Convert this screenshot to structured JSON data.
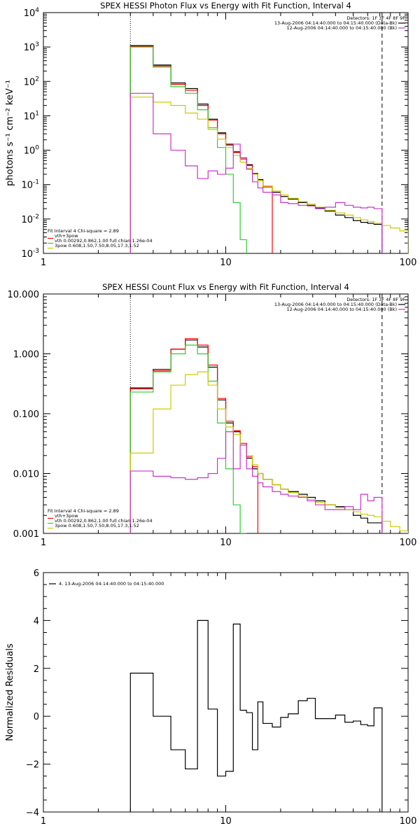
{
  "chart_data": [
    {
      "type": "line",
      "title": "SPEX HESSI Photon Flux vs Energy with Fit Function, Interval 4",
      "ylabel": "photons s⁻¹ cm⁻² keV⁻¹",
      "xlabel": "",
      "xscale": "log",
      "yscale": "log",
      "xlim": [
        1,
        100
      ],
      "ylim": [
        0.001,
        10000
      ],
      "x_ticks": [
        {
          "v": 1,
          "label": "1"
        },
        {
          "v": 10,
          "label": "10"
        },
        {
          "v": 100,
          "label": "100"
        }
      ],
      "y_ticks": [
        {
          "v": 0.001,
          "base": "10",
          "exp": "-3"
        },
        {
          "v": 0.01,
          "base": "10",
          "exp": "-2"
        },
        {
          "v": 0.1,
          "base": "10",
          "exp": "-1"
        },
        {
          "v": 1,
          "base": "10",
          "exp": "0"
        },
        {
          "v": 10,
          "base": "10",
          "exp": "1"
        },
        {
          "v": 100,
          "base": "10",
          "exp": "2"
        },
        {
          "v": 1000,
          "base": "10",
          "exp": "3"
        },
        {
          "v": 10000,
          "base": "10",
          "exp": "4"
        }
      ],
      "vlines": [
        {
          "x": 3,
          "style": "dotted"
        },
        {
          "x": 72,
          "style": "dashed"
        }
      ],
      "legend_right": [
        {
          "text": "Detectors: 1F 3F 4F 8F 9F",
          "color": null
        },
        {
          "text": "13-Aug-2006 04:14:40.000 to 04:15:40.000 (Data-Bk)",
          "color": "#000000"
        },
        {
          "text": "12-Aug-2006 04:14:40.000 to 04:15:40.000 (Bk)",
          "color": "#cc33cc"
        }
      ],
      "legend_left": [
        {
          "text": "Fit Interval 4   Chi-square = 2.89",
          "color": null
        },
        {
          "text": "vth+3pow",
          "color": "#ff0000"
        },
        {
          "text": "vth 0.00292,0.862,1.00  full chian 1.26e-04",
          "color": "#33cc33"
        },
        {
          "text": "3pow 0.608,1.50,7.50,8.05,17.3,1.52",
          "color": "#cccc00"
        }
      ],
      "edges": [
        3,
        4,
        5,
        6,
        7,
        8,
        9,
        10,
        11,
        12,
        13,
        14,
        15,
        16,
        18,
        20,
        22,
        25,
        28,
        31,
        35,
        40,
        45,
        50,
        55,
        60,
        65,
        72,
        80,
        90,
        100
      ],
      "series": [
        {
          "name": "13-Aug-2006 04:14:40.000 to 04:15:40.000 (Data-Bk)",
          "color": "#000000",
          "values": [
            1100,
            300,
            90,
            62,
            22,
            8,
            3.2,
            1.5,
            0.9,
            0.6,
            0.38,
            0.21,
            0.14,
            0.09,
            0.06,
            0.045,
            0.038,
            0.03,
            0.025,
            0.021,
            0.017,
            0.013,
            0.011,
            0.009,
            0.008,
            0.0075,
            0.007
          ]
        },
        {
          "name": "vth+3pow",
          "color": "#ff0000",
          "values": [
            1050,
            280,
            82,
            55,
            20,
            7.5,
            3.0,
            1.4,
            0.85,
            0.55,
            0.36,
            0.2,
            0.13,
            0.085
          ]
        },
        {
          "name": "vth",
          "color": "#33cc33",
          "values": [
            1000,
            260,
            70,
            45,
            15,
            4.5,
            1.2,
            0.2,
            0.03,
            0.0025
          ]
        },
        {
          "name": "3pow",
          "color": "#cccc00",
          "values": [
            35,
            25,
            20,
            12,
            8,
            4,
            2.1,
            1.2,
            0.7,
            0.45,
            0.3,
            0.2,
            0.13,
            0.09,
            0.065,
            0.05,
            0.04,
            0.032,
            0.027,
            0.022,
            0.018,
            0.015,
            0.013,
            0.011,
            0.0095,
            0.0085,
            0.0075,
            0.0065,
            0.0055,
            0.0045
          ]
        },
        {
          "name": "12-Aug-2006 04:14:40.000 to 04:15:40.000 (Bk)",
          "color": "#cc33cc",
          "values": [
            45,
            3,
            1.0,
            0.35,
            0.15,
            0.25,
            0.2,
            0.3,
            1.5,
            0.6,
            0.28,
            0.12,
            0.08,
            0.06,
            0.05,
            0.03,
            0.028,
            0.025,
            0.024,
            0.02,
            0.022,
            0.03,
            0.025,
            0.022,
            0.021,
            0.022,
            0.02
          ]
        }
      ]
    },
    {
      "type": "line",
      "title": "SPEX HESSI Count Flux vs Energy with Fit Function, Interval 4",
      "ylabel": "",
      "xlabel": "",
      "xscale": "log",
      "yscale": "log",
      "xlim": [
        1,
        100
      ],
      "ylim": [
        0.001,
        10
      ],
      "x_ticks": [
        {
          "v": 1,
          "label": "1"
        },
        {
          "v": 10,
          "label": "10"
        },
        {
          "v": 100,
          "label": "100"
        }
      ],
      "y_ticks": [
        {
          "v": 0.001,
          "label": "0.001"
        },
        {
          "v": 0.01,
          "label": "0.010"
        },
        {
          "v": 0.1,
          "label": "0.100"
        },
        {
          "v": 1,
          "label": "1.000"
        },
        {
          "v": 10,
          "label": "10.000"
        }
      ],
      "vlines": [
        {
          "x": 3,
          "style": "dotted"
        },
        {
          "x": 72,
          "style": "dashed"
        }
      ],
      "legend_right": [
        {
          "text": "Detectors: 1F 3F 4F 8F 9F",
          "color": null
        },
        {
          "text": "13-Aug-2006 04:14:40.000 to 04:15:40.000 (Data-Bk)",
          "color": "#000000"
        },
        {
          "text": "12-Aug-2006 04:14:40.000 to 04:15:40.000 (Bk)",
          "color": "#cc33cc"
        }
      ],
      "legend_left": [
        {
          "text": "Fit Interval 4   Chi-square = 2.89",
          "color": null
        },
        {
          "text": "vth+3pow",
          "color": "#ff0000"
        },
        {
          "text": "vth 0.00292,0.862,1.00  full chian 1.26e-04",
          "color": "#33cc33"
        },
        {
          "text": "3pow 0.608,1.50,7.50,8.05,17.3,1.52",
          "color": "#cccc00"
        }
      ],
      "edges": [
        3,
        4,
        5,
        6,
        7,
        8,
        9,
        10,
        11,
        12,
        13,
        14,
        15,
        16,
        18,
        20,
        22,
        25,
        28,
        31,
        35,
        40,
        45,
        50,
        55,
        60,
        65,
        72,
        80,
        90,
        100
      ],
      "series": [
        {
          "name": "13-Aug-2006 04:14:40.000 to 04:15:40.000 (Data-Bk)",
          "color": "#000000",
          "values": [
            0.27,
            0.55,
            1.2,
            1.7,
            1.3,
            0.6,
            0.17,
            0.07,
            0.05,
            0.03,
            0.018,
            0.012,
            0.01,
            0.008,
            0.0065,
            0.0055,
            0.005,
            0.0045,
            0.004,
            0.0035,
            0.003,
            0.0028,
            0.0025,
            0.002,
            0.0018,
            0.0015,
            0.0015
          ]
        },
        {
          "name": "vth+3pow",
          "color": "#ff0000",
          "values": [
            0.26,
            0.52,
            1.2,
            1.8,
            1.4,
            0.65,
            0.18,
            0.075,
            0.052,
            0.032,
            0.019,
            0.013
          ]
        },
        {
          "name": "vth",
          "color": "#33cc33",
          "values": [
            0.23,
            0.5,
            1.0,
            1.4,
            1.0,
            0.35,
            0.07,
            0.012,
            0.003,
            0.001
          ]
        },
        {
          "name": "3pow",
          "color": "#cccc00",
          "values": [
            0.022,
            0.12,
            0.3,
            0.45,
            0.5,
            0.3,
            0.12,
            0.06,
            0.045,
            0.03,
            0.02,
            0.014,
            0.01,
            0.008,
            0.0065,
            0.0055,
            0.0048,
            0.0042,
            0.0037,
            0.0033,
            0.003,
            0.0027,
            0.0025,
            0.0023,
            0.0021,
            0.002,
            0.0019,
            0.0016,
            0.0013,
            0.0011
          ]
        },
        {
          "name": "12-Aug-2006 04:14:40.000 to 04:15:40.000 (Bk)",
          "color": "#cc33cc",
          "values": [
            0.011,
            0.009,
            0.0085,
            0.008,
            0.0085,
            0.01,
            0.018,
            0.05,
            0.012,
            0.03,
            0.012,
            0.009,
            0.007,
            0.006,
            0.005,
            0.0045,
            0.0042,
            0.004,
            0.0035,
            0.003,
            0.0025,
            0.0025,
            0.0028,
            0.0025,
            0.0045,
            0.0035,
            0.004
          ]
        }
      ]
    },
    {
      "type": "line",
      "title": "",
      "ylabel": "Normalized Residuals",
      "xlabel": "",
      "xscale": "log",
      "yscale": "linear",
      "xlim": [
        1,
        100
      ],
      "ylim": [
        -4,
        6
      ],
      "x_ticks": [
        {
          "v": 1,
          "label": "1"
        },
        {
          "v": 10,
          "label": "10"
        },
        {
          "v": 100,
          "label": "100"
        }
      ],
      "y_ticks": [
        {
          "v": -4,
          "label": "−4"
        },
        {
          "v": -2,
          "label": "−2"
        },
        {
          "v": 0,
          "label": "0"
        },
        {
          "v": 2,
          "label": "2"
        },
        {
          "v": 4,
          "label": "4"
        },
        {
          "v": 6,
          "label": "6"
        }
      ],
      "legend_left": [
        {
          "text": "4. 13-Aug-2006 04:14:40.000 to 04:15:40.000",
          "color": "#000000"
        }
      ],
      "edges": [
        3,
        4,
        5,
        6,
        7,
        8,
        9,
        10,
        11,
        12,
        13,
        14,
        15,
        16,
        18,
        20,
        22,
        25,
        28,
        31,
        35,
        40,
        45,
        50,
        55,
        60,
        65,
        72
      ],
      "series": [
        {
          "name": "4. 13-Aug-2006 04:14:40.000 to 04:15:40.000",
          "color": "#000000",
          "values": [
            1.8,
            0.0,
            -1.4,
            -2.2,
            4.0,
            0.3,
            -2.5,
            -2.3,
            3.85,
            0.25,
            0.15,
            -1.4,
            0.6,
            -0.3,
            -0.45,
            -0.05,
            0.1,
            0.65,
            0.75,
            -0.1,
            -0.1,
            0.05,
            -0.25,
            -0.2,
            -0.35,
            -0.4,
            0.35
          ]
        }
      ]
    }
  ]
}
